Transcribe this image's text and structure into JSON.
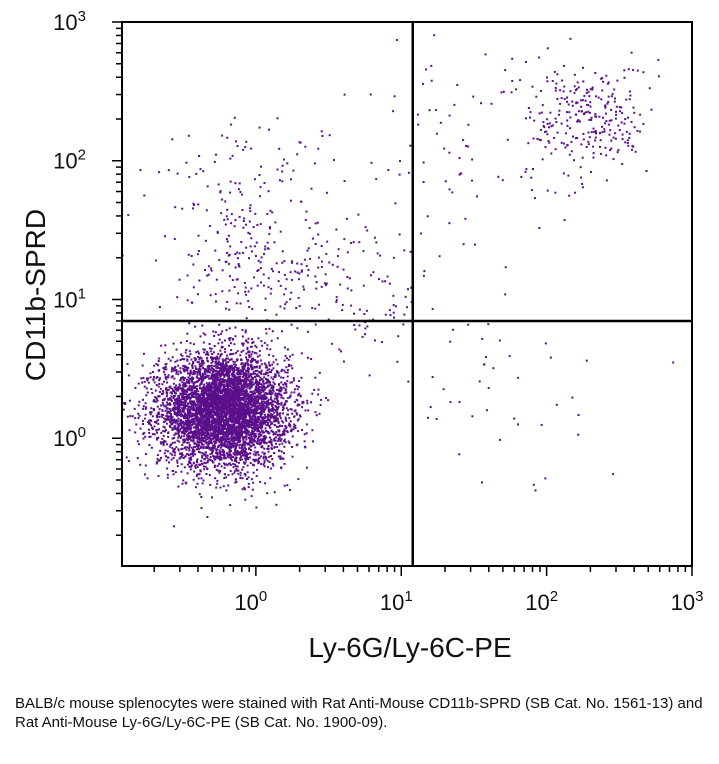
{
  "chart_data": {
    "type": "scatter",
    "xlabel": "Ly-6G/Ly-6C-PE",
    "ylabel": "CD11b-SPRD",
    "x_scale": "log",
    "y_scale": "log",
    "xlim": [
      0.12,
      1000
    ],
    "ylim": [
      0.12,
      1000
    ],
    "x_ticks": [
      {
        "value": 1,
        "base": "10",
        "exp": "0"
      },
      {
        "value": 10,
        "base": "10",
        "exp": "1"
      },
      {
        "value": 100,
        "base": "10",
        "exp": "2"
      },
      {
        "value": 1000,
        "base": "10",
        "exp": "3"
      }
    ],
    "y_ticks": [
      {
        "value": 1,
        "base": "10",
        "exp": "0"
      },
      {
        "value": 10,
        "base": "10",
        "exp": "1"
      },
      {
        "value": 100,
        "base": "10",
        "exp": "2"
      },
      {
        "value": 1000,
        "base": "10",
        "exp": "3"
      }
    ],
    "quadrant_gate": {
      "x": 12,
      "y": 7
    },
    "grid": false,
    "point_color": "#5b0f8a",
    "populations": [
      {
        "center": [
          0.6,
          1.6
        ],
        "log_spread": [
          0.22,
          0.2
        ],
        "count": 5500
      },
      {
        "center": [
          0.8,
          25
        ],
        "log_spread": [
          0.28,
          0.45
        ],
        "count": 260
      },
      {
        "center": [
          200,
          200
        ],
        "log_spread": [
          0.2,
          0.2
        ],
        "count": 260
      },
      {
        "center": [
          30,
          150
        ],
        "log_spread": [
          0.5,
          0.4
        ],
        "count": 90
      },
      {
        "center": [
          4,
          12
        ],
        "log_spread": [
          0.35,
          0.3
        ],
        "count": 170
      },
      {
        "center": [
          40,
          2
        ],
        "log_spread": [
          0.4,
          0.35
        ],
        "count": 40
      }
    ]
  },
  "caption": "BALB/c mouse splenocytes were stained with Rat Anti-Mouse CD11b-SPRD (SB Cat. No. 1561-13) and Rat Anti-Mouse Ly-6G/Ly-6C-PE (SB Cat. No. 1900-09)."
}
